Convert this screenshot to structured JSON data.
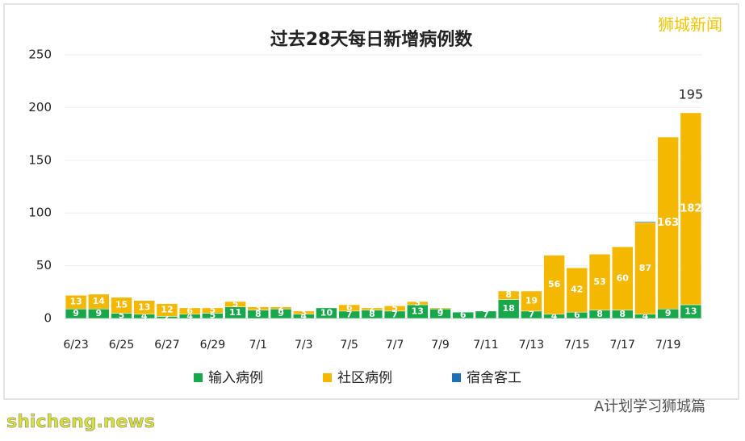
{
  "chart_data": {
    "type": "stacked_bar",
    "title": "过去28天每日新增病例数",
    "categories": [
      "6/23",
      null,
      "6/25",
      null,
      "6/27",
      null,
      "6/29",
      null,
      "7/1",
      null,
      "7/3",
      null,
      "7/5",
      null,
      "7/7",
      null,
      "7/9",
      null,
      "7/11",
      null,
      "7/13",
      null,
      "7/15",
      null,
      "7/17",
      null,
      "7/19",
      null
    ],
    "series": [
      {
        "name": "输入病例",
        "color": "#18a84b",
        "values": [
          9,
          9,
          5,
          4,
          2,
          4,
          5,
          11,
          8,
          9,
          4,
          10,
          7,
          8,
          7,
          13,
          9,
          6,
          7,
          18,
          7,
          4,
          6,
          8,
          8,
          4,
          9,
          13
        ]
      },
      {
        "name": "社区病例",
        "color": "#f5b800",
        "values": [
          13,
          14,
          15,
          13,
          12,
          6,
          5,
          5,
          3,
          2,
          3,
          0,
          6,
          2,
          5,
          3,
          1,
          0,
          0,
          8,
          19,
          56,
          42,
          53,
          60,
          87,
          163,
          182
        ]
      },
      {
        "name": "宿舍客工",
        "color": "#1f6fb5",
        "values": [
          0,
          0,
          0,
          0,
          0,
          0,
          0,
          0,
          0,
          0,
          0,
          0,
          0,
          0,
          0,
          0,
          0,
          0,
          0,
          0,
          0,
          0,
          0,
          0,
          0,
          1,
          0,
          0
        ]
      }
    ],
    "ylim": [
      0,
      250
    ],
    "yticks": [
      0,
      50,
      100,
      150,
      200,
      250
    ],
    "grid": true,
    "annotation": {
      "text": "195",
      "category": 27
    },
    "watermarks": [
      "狮城新闻",
      "A计划学习狮城篇",
      "shicheng.news"
    ]
  }
}
